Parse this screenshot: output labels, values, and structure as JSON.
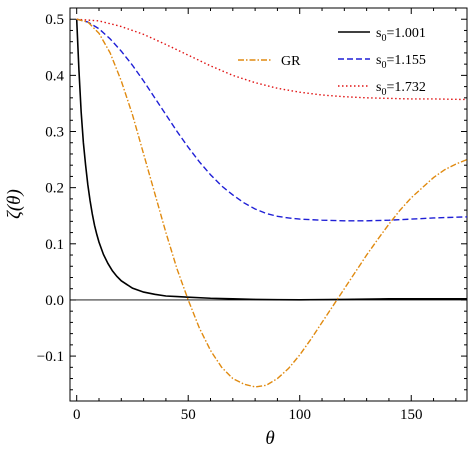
{
  "chart_data": {
    "type": "line",
    "xlabel": "θ",
    "ylabel": "ζ(θ)",
    "xlim": [
      -3,
      175
    ],
    "ylim": [
      -0.18,
      0.52
    ],
    "xticks": [
      0,
      50,
      100,
      150
    ],
    "yticks": [
      -0.1,
      0.0,
      0.1,
      0.2,
      0.3,
      0.4,
      0.5
    ],
    "ytick_labels": [
      "−0.1",
      "0.0",
      "0.1",
      "0.2",
      "0.3",
      "0.4",
      "0.5"
    ],
    "grid": false,
    "legend_position": "top-right",
    "series": [
      {
        "name": "s0=1.001",
        "legend_base": "s",
        "legend_sub": "0",
        "legend_rest": "=1.001",
        "color": "#000000",
        "style": "solid",
        "x": [
          0,
          1,
          2,
          3,
          4,
          5,
          6,
          7,
          8,
          9,
          10,
          12,
          14,
          16,
          18,
          20,
          25,
          30,
          35,
          40,
          45,
          50,
          60,
          70,
          80,
          90,
          100,
          120,
          140,
          160,
          175
        ],
        "y": [
          0.5,
          0.41,
          0.335,
          0.28,
          0.24,
          0.205,
          0.177,
          0.153,
          0.133,
          0.117,
          0.103,
          0.081,
          0.065,
          0.052,
          0.042,
          0.034,
          0.021,
          0.014,
          0.01,
          0.007,
          0.006,
          0.005,
          0.003,
          0.002,
          0.001,
          0.0005,
          0.0002,
          0.001,
          0.002,
          0.002,
          0.002
        ]
      },
      {
        "name": "s0=1.155",
        "legend_base": "s",
        "legend_sub": "0",
        "legend_rest": "=1.155",
        "color": "#1f1fd6",
        "style": "dashed",
        "x": [
          0,
          5,
          10,
          15,
          20,
          25,
          30,
          35,
          40,
          45,
          50,
          55,
          60,
          65,
          70,
          75,
          80,
          85,
          90,
          95,
          100,
          110,
          120,
          130,
          140,
          150,
          160,
          175
        ],
        "y": [
          0.5,
          0.495,
          0.483,
          0.465,
          0.443,
          0.418,
          0.39,
          0.36,
          0.33,
          0.3,
          0.272,
          0.246,
          0.223,
          0.203,
          0.187,
          0.173,
          0.162,
          0.154,
          0.149,
          0.146,
          0.144,
          0.142,
          0.141,
          0.141,
          0.142,
          0.144,
          0.146,
          0.148
        ]
      },
      {
        "name": "s0=1.732",
        "legend_base": "s",
        "legend_sub": "0",
        "legend_rest": "=1.732",
        "color": "#e01414",
        "style": "dotted",
        "x": [
          0,
          10,
          20,
          30,
          40,
          50,
          60,
          70,
          80,
          90,
          100,
          110,
          120,
          130,
          140,
          150,
          160,
          175
        ],
        "y": [
          0.5,
          0.497,
          0.487,
          0.473,
          0.455,
          0.436,
          0.417,
          0.4,
          0.387,
          0.377,
          0.37,
          0.365,
          0.362,
          0.36,
          0.359,
          0.358,
          0.358,
          0.357
        ]
      },
      {
        "name": "GR",
        "color": "#e08a10",
        "style": "dashdot",
        "x": [
          0,
          5,
          10,
          15,
          20,
          25,
          30,
          35,
          40,
          45,
          50,
          55,
          60,
          65,
          70,
          75,
          80,
          85,
          90,
          95,
          100,
          105,
          110,
          115,
          120,
          125,
          130,
          135,
          140,
          145,
          150,
          155,
          160,
          165,
          170,
          175
        ],
        "y": [
          0.5,
          0.495,
          0.475,
          0.44,
          0.39,
          0.33,
          0.26,
          0.19,
          0.12,
          0.055,
          0.0,
          -0.05,
          -0.09,
          -0.12,
          -0.14,
          -0.15,
          -0.155,
          -0.152,
          -0.14,
          -0.122,
          -0.098,
          -0.07,
          -0.04,
          -0.01,
          0.02,
          0.05,
          0.08,
          0.108,
          0.135,
          0.16,
          0.182,
          0.2,
          0.218,
          0.232,
          0.242,
          0.25
        ]
      }
    ]
  }
}
